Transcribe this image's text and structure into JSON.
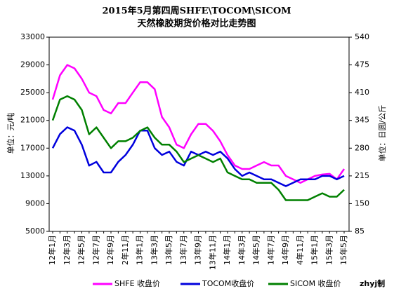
{
  "chart_data": {
    "type": "line",
    "title": "2015年5月第四周SHFE\\TOCOM\\SICOM",
    "subtitle": "天然橡胶期货价格对比走势图",
    "y_label": "单位：元/吨",
    "y2_label": "单位：日圆/公斤",
    "annotation": "zhyj制",
    "categories": [
      "12年1月",
      null,
      "12年3月",
      null,
      "12年5月",
      null,
      "12年7月",
      null,
      "12年9月",
      null,
      "2年11月",
      null,
      "13年1月",
      null,
      "13年3月",
      null,
      "13年5月",
      null,
      "13年7月",
      null,
      "13年9月",
      null,
      "13年11月",
      null,
      "14年1月",
      null,
      "14年3月",
      null,
      "14年5月",
      null,
      "14年7月",
      null,
      "14年9月",
      null,
      "4年11月",
      null,
      "15年1月",
      null,
      "15年3月",
      null,
      "15年5月"
    ],
    "ylim": [
      5000,
      33000
    ],
    "yticks": [
      5000,
      9000,
      13000,
      17000,
      21000,
      25000,
      29000,
      33000
    ],
    "y2lim": [
      85,
      540
    ],
    "y2ticks": [
      85,
      150,
      215,
      280,
      345,
      410,
      475,
      540
    ],
    "series": [
      {
        "name": "SHFE 收盘价",
        "color": "#ff00ff",
        "values": [
          24000,
          27500,
          29000,
          28500,
          27000,
          25000,
          24500,
          22500,
          22000,
          23500,
          23500,
          25000,
          26500,
          26500,
          25500,
          21500,
          20000,
          17500,
          17000,
          19000,
          20500,
          20500,
          19500,
          18000,
          16000,
          14500,
          14000,
          14000,
          14500,
          15000,
          14500,
          14500,
          13000,
          12500,
          12000,
          12500,
          13000,
          13200,
          13300,
          12500,
          14000
        ]
      },
      {
        "name": "TOCOM收盘价",
        "color": "#0000dd",
        "axis": "y2",
        "values": [
          280,
          313,
          329,
          321,
          288,
          239,
          248,
          223,
          223,
          248,
          264,
          288,
          321,
          321,
          280,
          264,
          272,
          248,
          239,
          272,
          264,
          272,
          264,
          272,
          256,
          231,
          215,
          223,
          215,
          207,
          207,
          199,
          191,
          199,
          207,
          207,
          207,
          215,
          215,
          207,
          215
        ]
      },
      {
        "name": "SICOM 收盘价",
        "color": "#008000",
        "values": [
          21000,
          24000,
          24500,
          24000,
          22500,
          19000,
          20000,
          18500,
          17000,
          18000,
          18000,
          18500,
          19500,
          20000,
          18500,
          17500,
          17500,
          16500,
          15000,
          15500,
          16000,
          15500,
          15000,
          15500,
          13500,
          13000,
          12500,
          12500,
          12000,
          12000,
          12000,
          11000,
          9500,
          9500,
          9500,
          9500,
          10000,
          10500,
          10000,
          10000,
          11000
        ]
      }
    ]
  }
}
